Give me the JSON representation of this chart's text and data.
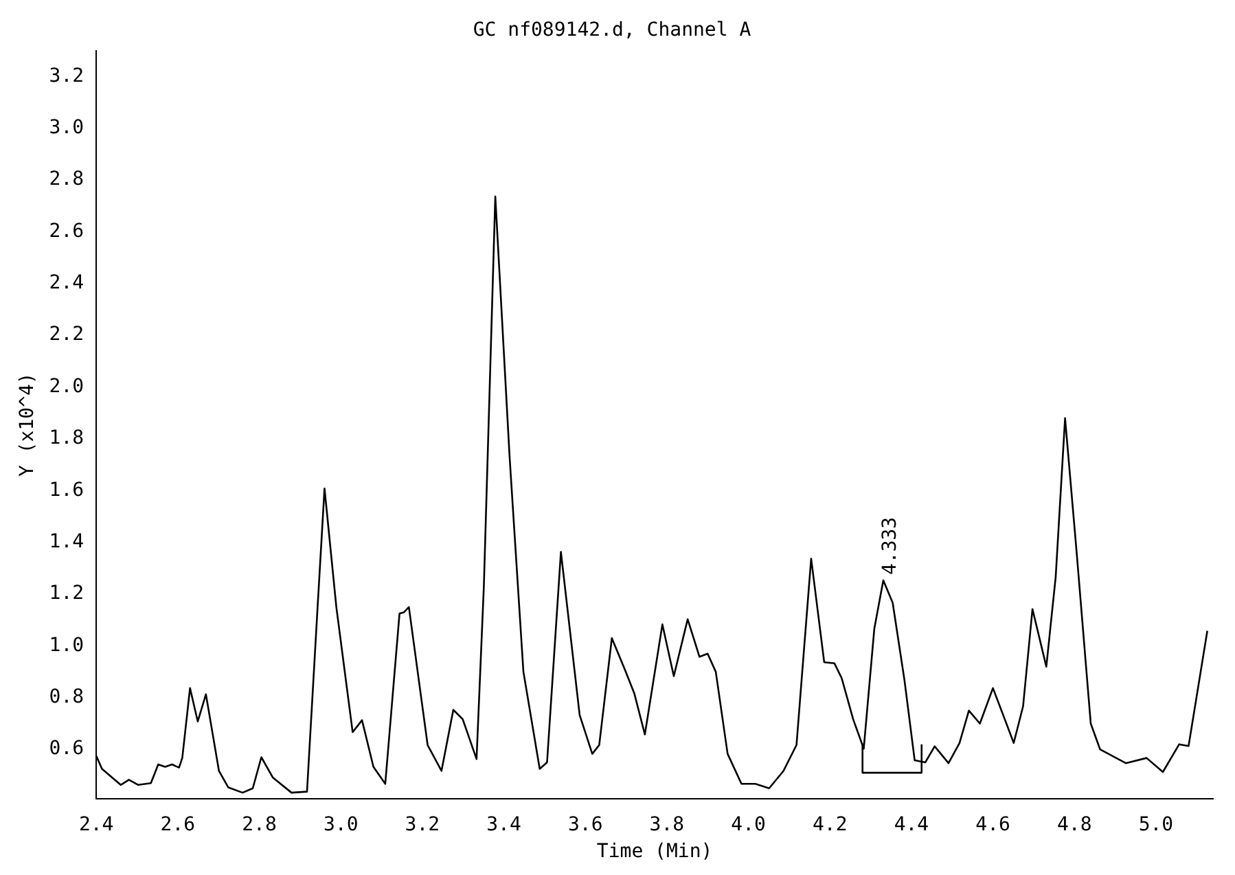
{
  "chart_data": {
    "type": "line",
    "title": "GC nf089142.d, Channel A",
    "xlabel": "Time (Min)",
    "ylabel": "Y (x10^4)",
    "xlim": [
      2.4,
      5.14
    ],
    "xticks": [
      2.4,
      2.6,
      2.8,
      {
        "value": 3,
        "label": "3.0"
      },
      3.2,
      3.4,
      3.6,
      3.8,
      {
        "value": 4,
        "label": "4.0"
      },
      4.2,
      4.4,
      4.6,
      4.8,
      {
        "value": 5,
        "label": "5.0"
      }
    ],
    "ylim": [
      0.41,
      3.3
    ],
    "yticks": [
      0.6,
      0.8,
      {
        "value": 1,
        "label": "1.0"
      },
      1.2,
      1.4,
      1.6,
      1.8,
      {
        "value": 2,
        "label": "2.0"
      },
      2.2,
      2.4,
      2.6,
      2.8,
      {
        "value": 3,
        "label": "3.0"
      },
      3.2
    ],
    "grid": false,
    "legend": false,
    "marker": "none",
    "line_style": "solid",
    "annotations": [
      {
        "text": "4.333",
        "x": 4.333,
        "y": 1.253
      }
    ],
    "series": [
      {
        "color": "#000000",
        "x": [
          2.4,
          2.414,
          2.46,
          2.48,
          2.503,
          2.534,
          2.552,
          2.569,
          2.586,
          2.603,
          2.611,
          2.63,
          2.649,
          2.669,
          2.701,
          2.724,
          2.759,
          2.784,
          2.805,
          2.833,
          2.879,
          2.917,
          2.943,
          2.96,
          2.989,
          3.029,
          3.052,
          3.08,
          3.109,
          3.144,
          3.155,
          3.167,
          3.213,
          3.247,
          3.276,
          3.299,
          3.333,
          3.351,
          3.379,
          3.414,
          3.448,
          3.488,
          3.506,
          3.54,
          3.586,
          3.617,
          3.634,
          3.665,
          3.697,
          3.72,
          3.746,
          3.789,
          3.817,
          3.851,
          3.88,
          3.9,
          3.92,
          3.949,
          3.983,
          4.017,
          4.051,
          4.086,
          4.118,
          4.154,
          4.186,
          4.211,
          4.229,
          4.257,
          4.283,
          4.309,
          4.331,
          4.354,
          4.383,
          4.408,
          4.434,
          4.457,
          4.491,
          4.518,
          4.541,
          4.568,
          4.6,
          4.629,
          4.651,
          4.674,
          4.697,
          4.731,
          4.754,
          4.777,
          4.806,
          4.84,
          4.863,
          4.926,
          4.977,
          5.017,
          5.057,
          5.08,
          5.126
        ],
        "values": [
          0.575,
          0.525,
          0.463,
          0.483,
          0.463,
          0.47,
          0.542,
          0.533,
          0.542,
          0.53,
          0.567,
          0.837,
          0.708,
          0.813,
          0.517,
          0.453,
          0.433,
          0.45,
          0.57,
          0.492,
          0.433,
          0.437,
          1.15,
          1.608,
          1.15,
          0.667,
          0.713,
          0.533,
          0.467,
          1.125,
          1.13,
          1.15,
          0.617,
          0.517,
          0.753,
          0.717,
          0.563,
          1.233,
          2.736,
          1.733,
          0.9,
          0.525,
          0.55,
          1.363,
          0.733,
          0.583,
          0.617,
          1.03,
          0.908,
          0.817,
          0.658,
          1.083,
          0.883,
          1.103,
          0.958,
          0.97,
          0.9,
          0.583,
          0.467,
          0.467,
          0.45,
          0.517,
          0.617,
          1.337,
          0.937,
          0.933,
          0.875,
          0.717,
          0.603,
          1.067,
          1.253,
          1.167,
          0.867,
          0.558,
          0.55,
          0.612,
          0.547,
          0.625,
          0.75,
          0.7,
          0.837,
          0.717,
          0.625,
          0.767,
          1.142,
          0.92,
          1.267,
          1.88,
          1.35,
          0.7,
          0.6,
          0.547,
          0.567,
          0.513,
          0.62,
          0.613,
          1.058
        ]
      },
      {
        "color": "#000000",
        "x": [
          4.28,
          4.28,
          4.425,
          4.425
        ],
        "values": [
          0.62,
          0.51,
          0.51,
          0.62
        ]
      }
    ]
  }
}
